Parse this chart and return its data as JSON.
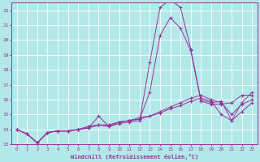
{
  "xlabel": "Windchill (Refroidissement éolien,°C)",
  "bg_color": "#b2e8e8",
  "line_color": "#993399",
  "grid_color": "#ffffff",
  "xmin": 0,
  "xmax": 23,
  "ymin": 13,
  "ymax": 22.5,
  "yticks": [
    13,
    14,
    15,
    16,
    17,
    18,
    19,
    20,
    21,
    22
  ],
  "xticks": [
    0,
    1,
    2,
    3,
    4,
    5,
    6,
    7,
    8,
    9,
    10,
    11,
    12,
    13,
    14,
    15,
    16,
    17,
    18,
    19,
    20,
    21,
    22,
    23
  ],
  "lines": [
    [
      14.0,
      13.7,
      13.1,
      13.8,
      13.9,
      13.9,
      14.0,
      14.1,
      14.9,
      14.2,
      14.5,
      14.6,
      14.7,
      16.5,
      20.3,
      21.5,
      20.8,
      19.3,
      15.9,
      15.7,
      15.7,
      15.8,
      16.3,
      16.3
    ],
    [
      14.0,
      13.7,
      13.1,
      13.8,
      13.9,
      13.9,
      14.0,
      14.1,
      14.3,
      14.2,
      14.4,
      14.5,
      14.6,
      18.5,
      22.2,
      22.7,
      22.2,
      19.4,
      16.0,
      15.8,
      15.9,
      14.6,
      15.8,
      16.5
    ],
    [
      14.0,
      13.7,
      13.1,
      13.8,
      13.9,
      13.9,
      14.0,
      14.2,
      14.3,
      14.3,
      14.5,
      14.6,
      14.8,
      14.9,
      15.2,
      15.5,
      15.8,
      16.1,
      16.3,
      16.0,
      15.8,
      15.0,
      15.7,
      16.0
    ],
    [
      14.0,
      13.7,
      13.1,
      13.8,
      13.9,
      13.9,
      14.0,
      14.2,
      14.3,
      14.3,
      14.5,
      14.6,
      14.7,
      14.9,
      15.1,
      15.4,
      15.6,
      15.9,
      16.1,
      15.9,
      15.0,
      14.6,
      15.2,
      15.8
    ]
  ]
}
